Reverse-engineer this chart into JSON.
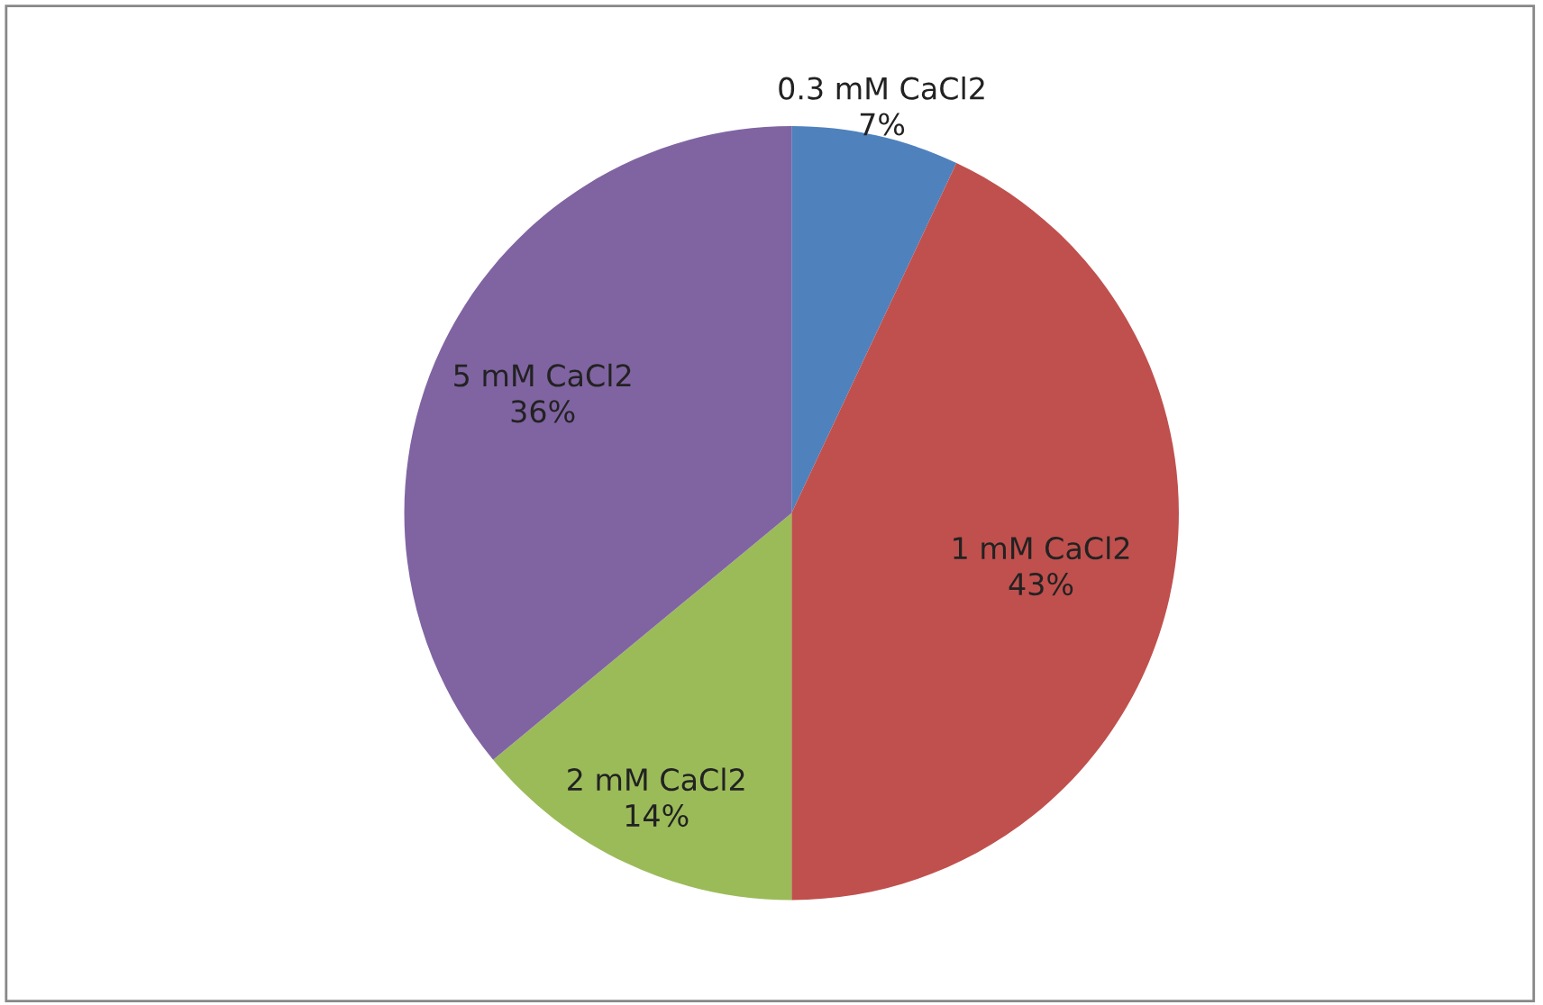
{
  "chart_data": {
    "type": "pie",
    "categories": [
      "0.3 mM CaCl2",
      "1 mM CaCl2",
      "2 mM CaCl2",
      "5 mM CaCl2"
    ],
    "values": [
      7,
      43,
      14,
      36
    ],
    "value_labels": [
      "7%",
      "43%",
      "14%",
      "36%"
    ],
    "colors": [
      "#4f81bd",
      "#c0504d",
      "#9bbb59",
      "#8064a2"
    ],
    "legend": false
  }
}
